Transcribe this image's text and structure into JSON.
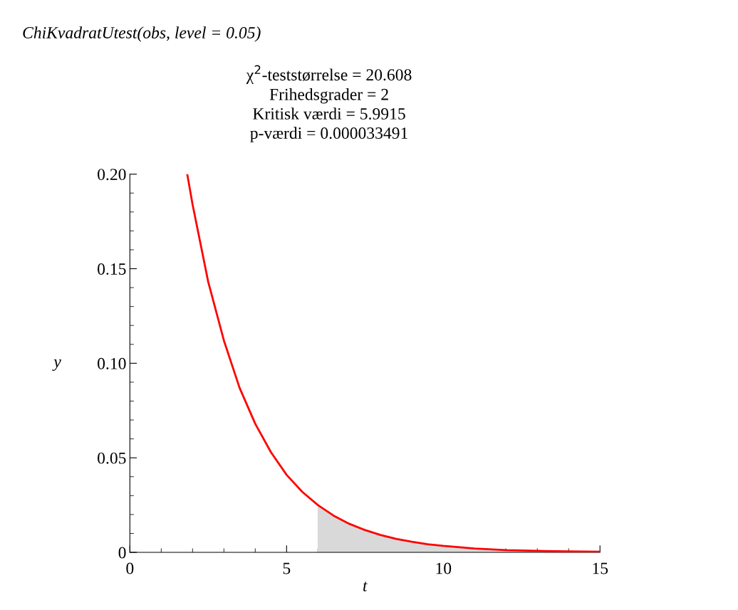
{
  "chart_data": {
    "type": "line",
    "title": "ChiKvadratUtest(obs, level = 0.05)",
    "subtitle": "χ$^{2}$-teststørrelse = 20.608\nFrihedsgrader = 2\nKritisk værdi = 5.9915\np-værdi = 0.000033491",
    "xlabel": "t",
    "ylabel": "y",
    "series": [
      {
        "type": "area",
        "color": "#d9d9d9",
        "x": [
          5.9915,
          6.5,
          7,
          7.5,
          8,
          8.5,
          9,
          9.5,
          10,
          11,
          12,
          13,
          14,
          15
        ],
        "values": [
          0.025,
          0.0194,
          0.0151,
          0.0118,
          0.0092,
          0.0071,
          0.0056,
          0.0043,
          0.0034,
          0.002,
          0.0012,
          0.0008,
          0.0005,
          0.0003
        ]
      },
      {
        "color": "#ff0000",
        "x": [
          1.83,
          2,
          2.5,
          3,
          3.5,
          4,
          4.5,
          5,
          5.5,
          6,
          6.5,
          7,
          7.5,
          8,
          8.5,
          9,
          9.5,
          10,
          11,
          12,
          13,
          14,
          15
        ],
        "values": [
          0.2,
          0.184,
          0.143,
          0.112,
          0.087,
          0.068,
          0.053,
          0.041,
          0.032,
          0.025,
          0.0194,
          0.0151,
          0.0118,
          0.0092,
          0.0071,
          0.0056,
          0.0043,
          0.0034,
          0.002,
          0.0012,
          0.0008,
          0.0005,
          0.0003
        ]
      }
    ],
    "xlim": [
      0,
      15
    ],
    "xticks": [
      0,
      5,
      10,
      15
    ],
    "ylim": [
      0,
      0.2
    ],
    "yticks": [
      0,
      0.05,
      {
        "value": 0.1,
        "label": "0.10"
      },
      0.15,
      {
        "value": 0.2,
        "label": "0.20"
      }
    ],
    "grid": false,
    "legend": false
  }
}
